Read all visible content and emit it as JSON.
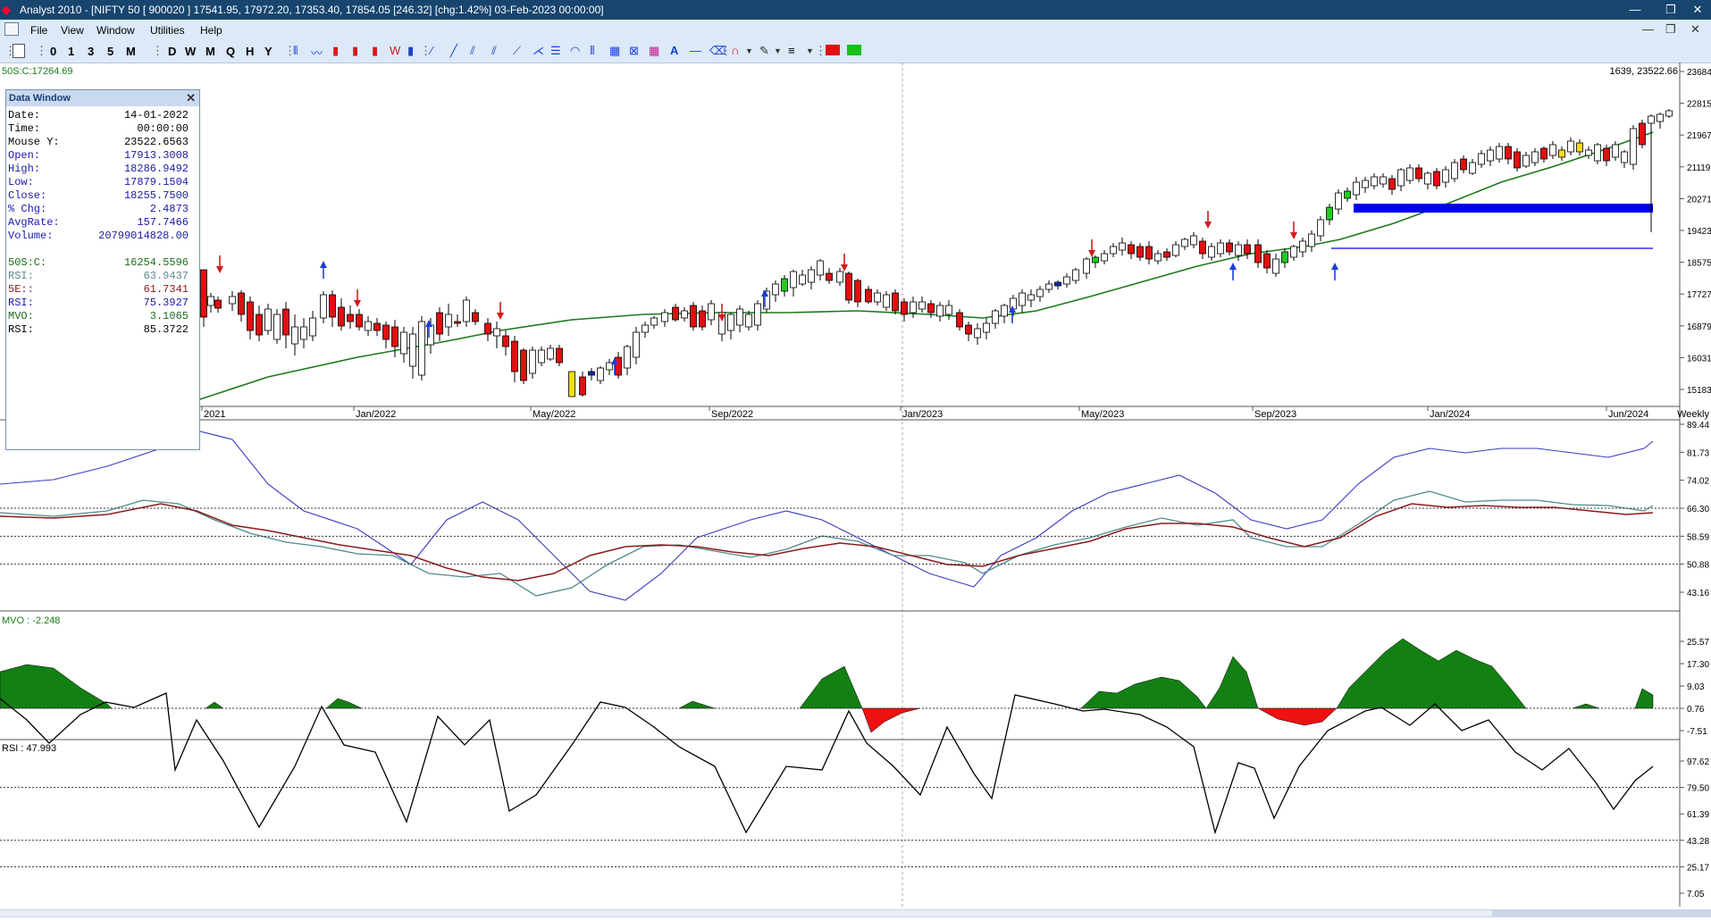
{
  "window": {
    "title": "Analyst 2010 - [NIFTY 50 [ 900020 ] 17541.95, 17972.20, 17353.40, 17854.05 [246.32] [chg:1.42%] 03-Feb-2023 00:00:00]",
    "minimize_glyph": "—",
    "restore_glyph": "❐",
    "close_glyph": "✕"
  },
  "menu": {
    "items": [
      "File",
      "View",
      "Window",
      "Utilities",
      "Help"
    ]
  },
  "toolbar": {
    "interval_buttons": [
      "0",
      "1",
      "3",
      "5",
      "M",
      "D",
      "W",
      "M",
      "Q",
      "H",
      "Y"
    ]
  },
  "price_panel": {
    "indicator_label": "50S:C:17264.69",
    "top_right_readout": "1639, 23522.66",
    "period_label": "Weekly",
    "y_ticks": [
      "23684.",
      "22815.",
      "21967.",
      "21119.",
      "20271.",
      "19423.",
      "18575.",
      "17727.",
      "16879.",
      "16031.",
      "15183."
    ],
    "x_ticks": [
      "2021",
      "Jan/2022",
      "May/2022",
      "Sep/2022",
      "Jan/2023",
      "May/2023",
      "Sep/2023",
      "Jan/2024",
      "Jun/2024"
    ]
  },
  "rsi_combo_panel": {
    "y_ticks": [
      "89.44",
      "81.73",
      "74.02",
      "66.30",
      "58.59",
      "50.88",
      "43.16"
    ]
  },
  "mvo_panel": {
    "label": "MVO : -2.248",
    "y_ticks": [
      "25.57",
      "17.30",
      "9.03",
      "0.76",
      "-7.51"
    ]
  },
  "rsi_panel": {
    "label": "RSI : 47.993",
    "y_ticks": [
      "97.62",
      "79.50",
      "61.39",
      "43.28",
      "25.17",
      "7.05"
    ]
  },
  "data_window": {
    "title": "Data Window",
    "close_glyph": "✕",
    "rows": [
      {
        "k": "Date:",
        "v": "14-01-2022",
        "color": "#000000"
      },
      {
        "k": "Time:",
        "v": "00:00:00",
        "color": "#000000"
      },
      {
        "k": "Mouse Y:",
        "v": "23522.6563",
        "color": "#000000"
      },
      {
        "k": "Open:",
        "v": "17913.3008",
        "color": "#1a1aa8"
      },
      {
        "k": "High:",
        "v": "18286.9492",
        "color": "#1a1aa8"
      },
      {
        "k": "Low:",
        "v": "17879.1504",
        "color": "#1a1aa8"
      },
      {
        "k": "Close:",
        "v": "18255.7500",
        "color": "#1a1aa8"
      },
      {
        "k": "% Chg:",
        "v": "2.4873",
        "color": "#1a1aa8"
      },
      {
        "k": "AvgRate:",
        "v": "157.7466",
        "color": "#1a1aa8"
      },
      {
        "k": "Volume:",
        "v": "20799014828.00",
        "color": "#1a1aa8"
      },
      {
        "k": "",
        "v": "",
        "color": "#000000"
      },
      {
        "k": "  50S:C:",
        "v": "16254.5596",
        "color": "#1f6b1f"
      },
      {
        "k": "RSI:",
        "v": "63.9437",
        "color": "#5c8a8a"
      },
      {
        "k": "  5E::",
        "v": "61.7341",
        "color": "#8b1a1a"
      },
      {
        "k": "RSI:",
        "v": "75.3927",
        "color": "#1a1aa8"
      },
      {
        "k": "MVO:",
        "v": "3.1065",
        "color": "#1f6b1f"
      },
      {
        "k": "RSI:",
        "v": "85.3722",
        "color": "#000000"
      }
    ]
  },
  "colors": {
    "up_candle": "#ffffff",
    "down_candle": "#e01010",
    "ma_line": "#1b7a1b",
    "support_band": "#0000ee",
    "mvo_positive": "#138013",
    "mvo_negative": "#ee1111",
    "arrow_up": "#1a3fd6",
    "arrow_down": "#d21a1a"
  }
}
